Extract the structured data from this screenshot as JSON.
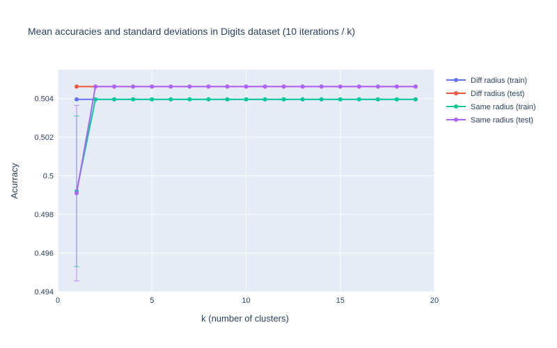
{
  "chart_data": {
    "type": "line",
    "title": "Mean accuracies and standard deviations in Digits dataset (10 iterations / k)",
    "xlabel": "k (number of clusters)",
    "ylabel": "Acurracy",
    "xlim": [
      0,
      20
    ],
    "ylim": [
      0.494,
      0.5055
    ],
    "x_ticks": [
      0,
      5,
      10,
      15,
      20
    ],
    "x_tick_labels": [
      "0",
      "5",
      "10",
      "15",
      "20"
    ],
    "y_ticks": [
      0.494,
      0.496,
      0.498,
      0.5,
      0.502,
      0.504
    ],
    "y_tick_labels": [
      "0.494",
      "0.496",
      "0.498",
      "0.5",
      "0.502",
      "0.504"
    ],
    "grid": true,
    "legend_position": "right",
    "x": [
      1,
      2,
      3,
      4,
      5,
      6,
      7,
      8,
      9,
      10,
      11,
      12,
      13,
      14,
      15,
      16,
      17,
      18,
      19
    ],
    "series": [
      {
        "name": "Diff radius (train)",
        "color": "#636efa",
        "values": [
          0.50396,
          0.50396,
          0.50396,
          0.50396,
          0.50396,
          0.50396,
          0.50396,
          0.50396,
          0.50396,
          0.50396,
          0.50396,
          0.50396,
          0.50396,
          0.50396,
          0.50396,
          0.50396,
          0.50396,
          0.50396,
          0.50396
        ],
        "error": [
          0,
          0,
          0,
          0,
          0,
          0,
          0,
          0,
          0,
          0,
          0,
          0,
          0,
          0,
          0,
          0,
          0,
          0,
          0
        ]
      },
      {
        "name": "Diff radius (test)",
        "color": "#EF553B",
        "values": [
          0.50462,
          0.50462,
          0.50462,
          0.50462,
          0.50462,
          0.50462,
          0.50462,
          0.50462,
          0.50462,
          0.50462,
          0.50462,
          0.50462,
          0.50462,
          0.50462,
          0.50462,
          0.50462,
          0.50462,
          0.50462,
          0.50462
        ],
        "error": [
          0,
          0,
          0,
          0,
          0,
          0,
          0,
          0,
          0,
          0,
          0,
          0,
          0,
          0,
          0,
          0,
          0,
          0,
          0
        ]
      },
      {
        "name": "Same radius (train)",
        "color": "#00cc96",
        "values": [
          0.4992,
          0.50396,
          0.50396,
          0.50396,
          0.50396,
          0.50396,
          0.50396,
          0.50396,
          0.50396,
          0.50396,
          0.50396,
          0.50396,
          0.50396,
          0.50396,
          0.50396,
          0.50396,
          0.50396,
          0.50396,
          0.50396
        ],
        "error": [
          0.0039,
          0,
          0,
          0,
          0,
          0,
          0,
          0,
          0,
          0,
          0,
          0,
          0,
          0,
          0,
          0,
          0,
          0,
          0
        ]
      },
      {
        "name": "Same radius (test)",
        "color": "#ab63fa",
        "values": [
          0.4991,
          0.50462,
          0.50462,
          0.50462,
          0.50462,
          0.50462,
          0.50462,
          0.50462,
          0.50462,
          0.50462,
          0.50462,
          0.50462,
          0.50462,
          0.50462,
          0.50462,
          0.50462,
          0.50462,
          0.50462,
          0.50462
        ],
        "error": [
          0.00455,
          0,
          0,
          0,
          0,
          0,
          0,
          0,
          0,
          0,
          0,
          0,
          0,
          0,
          0,
          0,
          0,
          0,
          0
        ]
      }
    ]
  }
}
